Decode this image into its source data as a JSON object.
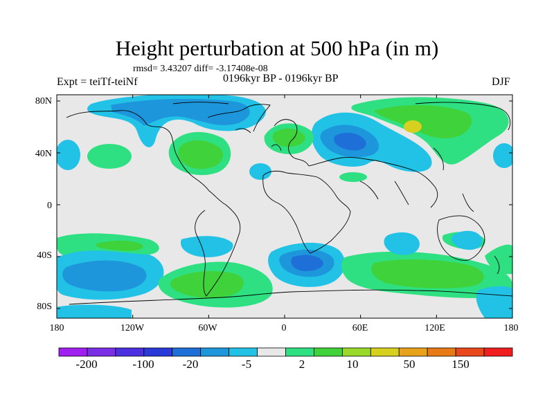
{
  "title": "Height perturbation at 500 hPa (in m)",
  "stats": "rmsd= 3.43207 diff= -3.17408e-08",
  "experiment": "Expt = teiTf-teiNf",
  "period": "0196kyr BP - 0196kyr BP",
  "season": "DJF",
  "lat_ticks": [
    "80N",
    "40N",
    "0",
    "40S",
    "80S"
  ],
  "lon_ticks": [
    "180",
    "120W",
    "60W",
    "0",
    "60E",
    "120E",
    "180"
  ],
  "colorbar": {
    "colors": [
      "#a020f0",
      "#7b2ee6",
      "#4a30e0",
      "#2a3ad8",
      "#1f6fd8",
      "#1e96dc",
      "#22c2e6",
      "#e8e8e8",
      "#2ee082",
      "#3fd23a",
      "#9ad82a",
      "#d8d01e",
      "#e8a21a",
      "#e87a16",
      "#e8481a",
      "#f01e1e"
    ],
    "labels": [
      "-200",
      "-100",
      "-20",
      "-5",
      "2",
      "10",
      "50",
      "150"
    ]
  },
  "colors": {
    "background": "#e8e8e8",
    "neg_light": "#22c2e6",
    "neg_mid": "#1e96dc",
    "neg_strong": "#1f6fd8",
    "pos_light": "#2ee082",
    "pos_mid": "#3fd23a",
    "pos_strong": "#9ad82a",
    "pos_peak": "#d8d01e"
  }
}
